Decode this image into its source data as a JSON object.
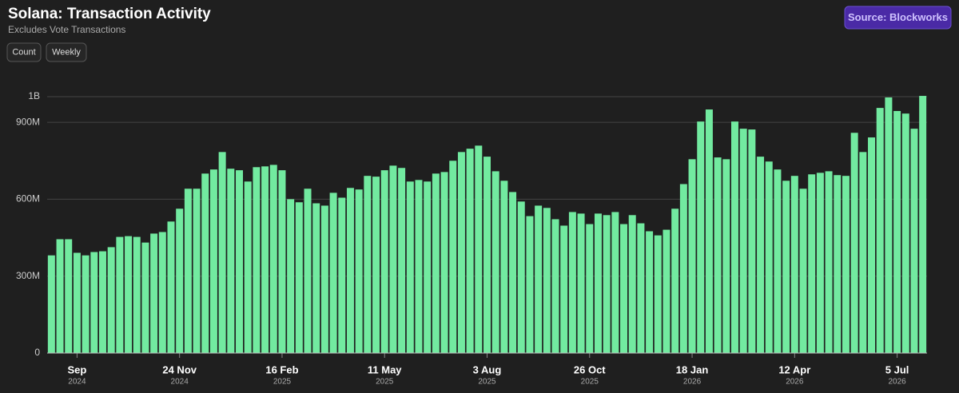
{
  "header": {
    "title": "Solana: Transaction Activity",
    "subtitle": "Excludes Vote Transactions",
    "buttons": [
      "Count",
      "Weekly"
    ],
    "source": "Source: Blockworks"
  },
  "chart_data": {
    "type": "bar",
    "color": "#72eaa0",
    "grid": true,
    "ylim": [
      0,
      1000000000
    ],
    "yticks": [
      0,
      {
        "value": 300000000,
        "label": "300M"
      },
      {
        "value": 600000000,
        "label": "600M"
      },
      {
        "value": 900000000,
        "label": "900M"
      },
      {
        "value": 1000000000,
        "label": "1B"
      }
    ],
    "categories": [
      null,
      null,
      null,
      "Sep",
      null,
      null,
      null,
      null,
      null,
      null,
      null,
      null,
      null,
      null,
      null,
      "24 Nov",
      null,
      null,
      null,
      null,
      null,
      null,
      null,
      null,
      null,
      null,
      null,
      "16 Feb",
      null,
      null,
      null,
      null,
      null,
      null,
      null,
      null,
      null,
      null,
      null,
      "11 May",
      null,
      null,
      null,
      null,
      null,
      null,
      null,
      null,
      null,
      null,
      null,
      "3 Aug",
      null,
      null,
      null,
      null,
      null,
      null,
      null,
      null,
      null,
      null,
      null,
      "26 Oct",
      null,
      null,
      null,
      null,
      null,
      null,
      null,
      null,
      null,
      null,
      null,
      "18 Jan",
      null,
      null,
      null,
      null,
      null,
      null,
      null,
      null,
      null,
      null,
      null,
      "12 Apr",
      null,
      null,
      null,
      null,
      null,
      null,
      null,
      null,
      null,
      null,
      null,
      "5 Jul",
      null,
      null,
      null
    ],
    "category_years": [
      null,
      null,
      null,
      "2024",
      null,
      null,
      null,
      null,
      null,
      null,
      null,
      null,
      null,
      null,
      null,
      "2024",
      null,
      null,
      null,
      null,
      null,
      null,
      null,
      null,
      null,
      null,
      null,
      "2025",
      null,
      null,
      null,
      null,
      null,
      null,
      null,
      null,
      null,
      null,
      null,
      "2025",
      null,
      null,
      null,
      null,
      null,
      null,
      null,
      null,
      null,
      null,
      null,
      "2025",
      null,
      null,
      null,
      null,
      null,
      null,
      null,
      null,
      null,
      null,
      null,
      "2025",
      null,
      null,
      null,
      null,
      null,
      null,
      null,
      null,
      null,
      null,
      null,
      "2026",
      null,
      null,
      null,
      null,
      null,
      null,
      null,
      null,
      null,
      null,
      null,
      "2026",
      null,
      null,
      null,
      null,
      null,
      null,
      null,
      null,
      null,
      null,
      null,
      "2026",
      null,
      null,
      null
    ],
    "values": [
      381000000,
      444000000,
      444000000,
      391000000,
      381000000,
      394000000,
      397000000,
      413000000,
      453000000,
      456000000,
      453000000,
      431000000,
      466000000,
      472000000,
      513000000,
      563000000,
      641000000,
      641000000,
      700000000,
      716000000,
      784000000,
      719000000,
      713000000,
      669000000,
      725000000,
      728000000,
      734000000,
      713000000,
      600000000,
      588000000,
      641000000,
      584000000,
      575000000,
      625000000,
      606000000,
      644000000,
      638000000,
      691000000,
      688000000,
      713000000,
      731000000,
      722000000,
      669000000,
      675000000,
      669000000,
      700000000,
      706000000,
      750000000,
      784000000,
      797000000,
      809000000,
      766000000,
      709000000,
      672000000,
      628000000,
      591000000,
      534000000,
      575000000,
      566000000,
      522000000,
      497000000,
      550000000,
      544000000,
      503000000,
      544000000,
      538000000,
      550000000,
      503000000,
      538000000,
      506000000,
      475000000,
      459000000,
      481000000,
      563000000,
      659000000,
      756000000,
      903000000,
      950000000,
      763000000,
      756000000,
      903000000,
      875000000,
      872000000,
      766000000,
      747000000,
      716000000,
      672000000,
      691000000,
      641000000,
      697000000,
      703000000,
      709000000,
      694000000,
      691000000,
      859000000,
      784000000,
      841000000,
      956000000,
      997000000,
      944000000,
      934000000,
      875000000,
      1003000000
    ]
  }
}
